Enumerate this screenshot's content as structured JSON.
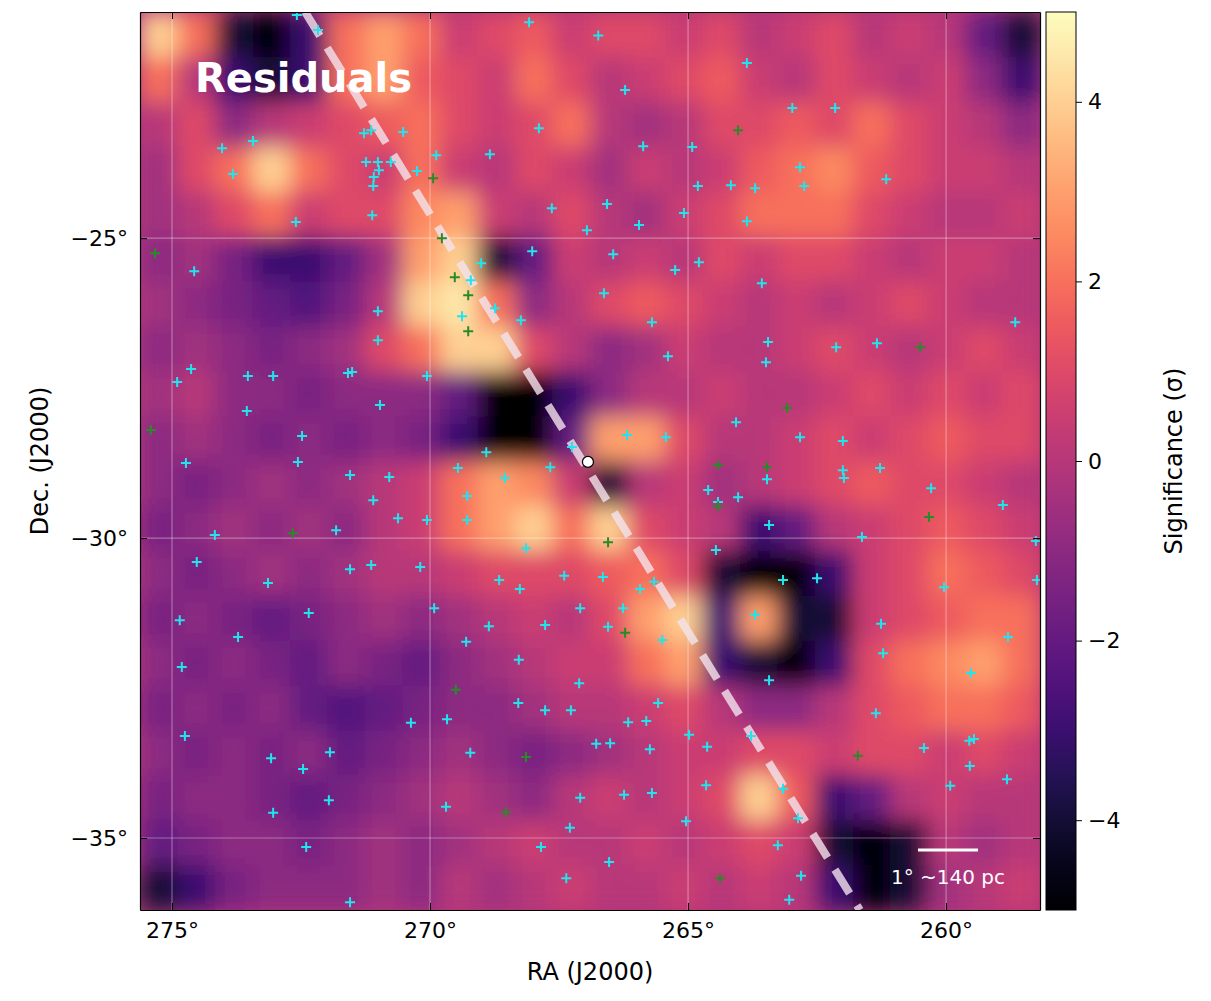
{
  "chart_data": {
    "type": "heatmap",
    "title": "Residuals",
    "x_label": "RA (J2000)",
    "y_label": "Dec. (J2000)",
    "xlim": [
      275.62,
      258.18
    ],
    "ylim": [
      -36.2,
      -21.23
    ],
    "xticks": [
      {
        "value": 275,
        "label": "275°"
      },
      {
        "value": 270,
        "label": "270°"
      },
      {
        "value": 265,
        "label": "265°"
      },
      {
        "value": 260,
        "label": "260°"
      }
    ],
    "yticks": [
      {
        "value": -25,
        "label": "−25°"
      },
      {
        "value": -30,
        "label": "−30°"
      },
      {
        "value": -35,
        "label": "−35°"
      }
    ],
    "grid": true,
    "x_bins": [
      275.62,
      274.89,
      274.17,
      273.44,
      272.71,
      271.99,
      271.26,
      270.53,
      269.81,
      269.08,
      268.35,
      267.63,
      266.9,
      266.17,
      265.45,
      264.72,
      263.99,
      263.27,
      262.54,
      261.81,
      261.09,
      260.36,
      259.63,
      258.91,
      258.18
    ],
    "y_bins": [
      -21.23,
      -21.98,
      -22.73,
      -23.48,
      -24.23,
      -24.97,
      -25.72,
      -26.47,
      -27.22,
      -27.97,
      -28.72,
      -29.46,
      -30.21,
      -30.96,
      -31.71,
      -32.46,
      -33.21,
      -33.95,
      -34.7,
      -35.45,
      -36.2
    ],
    "z": [
      [
        4,
        2,
        -4,
        -5,
        -3,
        2,
        3,
        2,
        0.5,
        1,
        1.5,
        0.5,
        1,
        1,
        0.5,
        1,
        0,
        0.5,
        1,
        0,
        0.5,
        0,
        -2,
        -4
      ],
      [
        2,
        0,
        -3,
        -4,
        -3,
        2,
        3,
        1.5,
        1,
        0.5,
        2,
        1,
        0,
        0.5,
        1,
        1.5,
        0.5,
        0,
        1,
        0.5,
        0,
        0.5,
        -1,
        -3
      ],
      [
        0,
        1,
        -1,
        0,
        0.5,
        1,
        1.5,
        2,
        1,
        0.5,
        1,
        2,
        0,
        -0.5,
        0,
        1,
        1,
        1.5,
        1,
        2,
        1,
        0.5,
        0,
        -1
      ],
      [
        -0.5,
        1,
        2,
        4,
        2,
        1,
        0.5,
        2,
        0.5,
        0,
        1,
        0.5,
        -0.5,
        0.5,
        0,
        0.5,
        1.5,
        2,
        2.5,
        1.5,
        1,
        0.5,
        0.5,
        0
      ],
      [
        -0.5,
        0,
        1,
        2,
        0.5,
        1,
        1,
        2.5,
        3,
        0.5,
        0,
        1,
        0,
        -0.5,
        0.5,
        1,
        2,
        2,
        2,
        1,
        0.5,
        0,
        0,
        0.5
      ],
      [
        -1,
        -0.5,
        -1.5,
        -3,
        -3,
        -2,
        -0.5,
        3,
        4,
        -4,
        -2,
        0.5,
        0,
        0.5,
        0,
        1,
        0.5,
        1,
        1,
        0.5,
        0,
        0.5,
        0.5,
        0
      ],
      [
        -0.5,
        -1,
        -1.5,
        -2,
        -2.5,
        -1.5,
        0,
        4,
        4.5,
        2,
        -1,
        0,
        1,
        1.5,
        1,
        0.5,
        0,
        0.5,
        0,
        0.5,
        1,
        0.5,
        0,
        0
      ],
      [
        -1,
        -0.5,
        -1,
        -1.5,
        -1,
        -0.5,
        1,
        2,
        4,
        4,
        1,
        0,
        -1,
        -0.5,
        0.5,
        0,
        0,
        0.5,
        1,
        0.5,
        0,
        0.5,
        1,
        0.5
      ],
      [
        -0.5,
        0,
        -1,
        -1,
        -1.5,
        -1,
        -1,
        -1,
        -2,
        -5,
        -5,
        -3,
        -1,
        0,
        0,
        0.5,
        0,
        0,
        0.5,
        1,
        0.5,
        1,
        0.5,
        1
      ],
      [
        -1,
        -0.5,
        -1,
        -1.5,
        -1,
        -1.5,
        -1,
        -1.5,
        -3,
        -5,
        -5,
        -2,
        3,
        3,
        1,
        0,
        0,
        0.5,
        1,
        0.5,
        1,
        1.5,
        1,
        1
      ],
      [
        -1,
        -1.5,
        -1,
        -0.5,
        -1,
        -0.5,
        0,
        0.5,
        2,
        3,
        2.5,
        0.5,
        -4,
        0,
        0.5,
        -0.5,
        0,
        0.5,
        1,
        1.5,
        1,
        1,
        0.5,
        0
      ],
      [
        -1.5,
        -1,
        -0.5,
        -1,
        -0.5,
        -1,
        0,
        0.5,
        2,
        3,
        4,
        2,
        4,
        1,
        0.5,
        0,
        -3,
        -2,
        0,
        0.5,
        1,
        1.5,
        1,
        0.5
      ],
      [
        -1,
        -1.5,
        -1,
        -0.5,
        -1,
        -0.5,
        0,
        0,
        0.5,
        1,
        1,
        1,
        1.5,
        2,
        1,
        -4,
        -5,
        -5,
        -3,
        0.5,
        1,
        2,
        1.5,
        1
      ],
      [
        -1.5,
        -1,
        -1.5,
        -2,
        -1.5,
        -1,
        -0.5,
        -1,
        -0.5,
        0,
        0.5,
        0,
        1,
        3,
        4,
        -3,
        3,
        -4,
        -4,
        0.5,
        1,
        1.5,
        2,
        2
      ],
      [
        -1,
        -1.5,
        -1,
        -1.5,
        -2,
        -1,
        -1.5,
        -2,
        -1,
        -0.5,
        0,
        0.5,
        0.5,
        2,
        3,
        -3,
        -4,
        -5,
        -3,
        1,
        2,
        2.5,
        3,
        2
      ],
      [
        -1.5,
        -1,
        -1.5,
        -1,
        -2,
        -2.5,
        -2,
        -1.5,
        -1,
        -1,
        -0.5,
        0,
        0,
        0.5,
        1,
        0,
        -1,
        -1,
        0,
        1,
        1.5,
        2,
        2,
        1.5
      ],
      [
        -1,
        -1.5,
        -1,
        -1.5,
        -1,
        -2,
        -1.5,
        -1,
        -0.5,
        -1,
        -1.5,
        -1,
        -0.5,
        0,
        0.5,
        0.5,
        1,
        1,
        0.5,
        1,
        1,
        0.5,
        1,
        0.5
      ],
      [
        -1.5,
        -1,
        -1,
        -1.5,
        -2,
        -1.5,
        -1,
        -0.5,
        0,
        -0.5,
        -1,
        0,
        0.5,
        0,
        0.5,
        1,
        4,
        1.5,
        -3,
        -2,
        0,
        0.5,
        0,
        0
      ],
      [
        -2,
        -1.5,
        -1,
        -1,
        -1.5,
        -1,
        -0.5,
        -1,
        -0.5,
        0,
        0.5,
        0,
        0,
        0.5,
        0,
        0.5,
        1,
        0.5,
        -4,
        -5,
        -4,
        0,
        -0.5,
        0
      ],
      [
        -4,
        -3,
        -1.5,
        -1,
        -1,
        -1,
        -0.5,
        -1,
        0,
        -0.5,
        0,
        0.5,
        0,
        0,
        0.5,
        0,
        0.5,
        0,
        -3,
        -5,
        -4,
        -0.5,
        0,
        0.5
      ]
    ],
    "colorbar": {
      "label": "Significance (σ)",
      "range": [
        -5,
        5
      ],
      "ticks": [
        {
          "value": -4,
          "label": "−4"
        },
        {
          "value": -2,
          "label": "−2"
        },
        0,
        2,
        4
      ]
    },
    "series": [
      {
        "type": "line",
        "line_style": "dashed",
        "color": "#f3e4ee",
        "x": [
          272.42,
          261.67
        ],
        "y": [
          -21.23,
          -36.2
        ]
      },
      {
        "type": "scatter",
        "marker": "plus",
        "color": "#22e4ee",
        "x": [
          272.58,
          272.17,
          266.74,
          268.08,
          266.22,
          263.86,
          271.14,
          271.28,
          270.52,
          267.89,
          269.88,
          262.98,
          262.15,
          274.03,
          273.43,
          273.82,
          271.24,
          271.01,
          270.76,
          270.99,
          271.09,
          271.1,
          270.25,
          268.84,
          265.87,
          264.92,
          264.17,
          264.81,
          263.7,
          262.83,
          262.75,
          261.16,
          272.6,
          271.12,
          267.64,
          266.57,
          265.08,
          263.86,
          269.01,
          268.02,
          266.96,
          265.95,
          266.45,
          266.63,
          265.25,
          264.79,
          263.57,
          269.21,
          268.74,
          268.24,
          274.57,
          271.01,
          271.01,
          271.59,
          269.38,
          265.7,
          265.39,
          263.45,
          263.49,
          262.13,
          261.34,
          258.66,
          274.9,
          274.63,
          273.53,
          273.04,
          273.55,
          272.48,
          271.51,
          270.97,
          270.06,
          268.91,
          269.46,
          269.28,
          268.55,
          268.14,
          267.67,
          267.25,
          266.18,
          265.43,
          264.07,
          262.83,
          262.0,
          262.0,
          261.28,
          264.61,
          264.42,
          264.03,
          263.43,
          263.47,
          261.98,
          260.29,
          258.9,
          258.26,
          261.63,
          274.73,
          272.56,
          271.55,
          270.79,
          270.62,
          270.06,
          269.28,
          271.1,
          271.82,
          274.17,
          273.14,
          274.52,
          274.85,
          273.72,
          272.35,
          271.55,
          271.14,
          270.19,
          269.92,
          269.3,
          268.66,
          268.26,
          268.86,
          268.28,
          267.77,
          267.09,
          267.4,
          266.65,
          266.55,
          266.26,
          265.93,
          265.66,
          265.5,
          264.46,
          263.7,
          263.16,
          262.5,
          261.26,
          261.22,
          260.04,
          259.52,
          259.46,
          258.8,
          258.24,
          274.75,
          274.81,
          273.08,
          272.46,
          271.94,
          271.96,
          273.04,
          272.4,
          271.55,
          269.67,
          270.37,
          269.22,
          268.29,
          267.77,
          267.27,
          267.11,
          266.78,
          266.51,
          266.16,
          265.81,
          265.58,
          264.98,
          264.63,
          264.65,
          265.7,
          266.24,
          265.04,
          267.09,
          267.29,
          267.85,
          267.36,
          266.53,
          265.74,
          263.78,
          263.43,
          263.16,
          262.87,
          262.81,
          263.26,
          263.04,
          261.36,
          260.43,
          259.55,
          259.54,
          259.92,
          258.82,
          269.69
        ],
        "y": [
          -21.28,
          -21.53,
          -21.62,
          -21.4,
          -22.53,
          -22.08,
          -23.2,
          -23.25,
          -23.23,
          -23.17,
          -23.62,
          -22.83,
          -22.83,
          -23.5,
          -23.38,
          -23.93,
          -23.73,
          -23.73,
          -23.73,
          -23.87,
          -23.98,
          -24.13,
          -23.88,
          -23.6,
          -23.47,
          -23.48,
          -24.12,
          -24.13,
          -24.17,
          -23.82,
          -24.13,
          -24.02,
          -24.73,
          -24.62,
          -24.5,
          -24.43,
          -24.58,
          -24.72,
          -25.42,
          -25.22,
          -24.87,
          -24.78,
          -25.27,
          -25.92,
          -25.53,
          -25.4,
          -25.75,
          -25.7,
          -26.17,
          -26.37,
          -25.55,
          -26.22,
          -26.7,
          -27.25,
          -26.3,
          -26.4,
          -26.97,
          -26.73,
          -27.07,
          -26.82,
          -26.75,
          -26.4,
          -27.4,
          -27.18,
          -27.3,
          -27.3,
          -27.88,
          -28.3,
          -27.23,
          -27.78,
          -27.3,
          -28.57,
          -28.83,
          -29.3,
          -29.0,
          -30.17,
          -28.82,
          -28.48,
          -28.28,
          -28.32,
          -28.07,
          -28.32,
          -28.38,
          -28.87,
          -28.83,
          -29.2,
          -29.4,
          -29.32,
          -29.78,
          -29.02,
          -29.0,
          -29.17,
          -29.45,
          -30.05,
          -29.98,
          -28.75,
          -28.73,
          -28.95,
          -28.98,
          -29.67,
          -29.7,
          -29.7,
          -29.37,
          -29.87,
          -29.95,
          -30.75,
          -30.4,
          -31.37,
          -31.65,
          -31.25,
          -30.52,
          -30.45,
          -30.48,
          -31.17,
          -31.73,
          -30.7,
          -30.85,
          -31.47,
          -32.03,
          -31.45,
          -31.17,
          -30.63,
          -30.65,
          -31.48,
          -31.17,
          -30.85,
          -30.73,
          -31.7,
          -30.2,
          -31.28,
          -30.7,
          -30.67,
          -31.43,
          -31.92,
          -30.82,
          -32.25,
          -33.35,
          -31.65,
          -30.7,
          -33.3,
          -32.15,
          -33.67,
          -33.85,
          -33.57,
          -34.37,
          -34.58,
          -35.15,
          -36.07,
          -33.02,
          -33.08,
          -33.58,
          -32.75,
          -32.87,
          -32.87,
          -32.42,
          -33.43,
          -33.42,
          -33.07,
          -33.05,
          -32.75,
          -33.28,
          -33.48,
          -34.12,
          -34.25,
          -34.28,
          -34.72,
          -34.33,
          -34.83,
          -35.15,
          -35.67,
          -35.4,
          -33.52,
          -33.3,
          -32.37,
          -34.18,
          -34.67,
          -35.63,
          -35.12,
          -36.03,
          -32.92,
          -33.5,
          -33.38,
          -33.8,
          -34.13,
          -34.02,
          -34.48
        ]
      },
      {
        "type": "scatter",
        "marker": "plus",
        "color": "#2a8a2a",
        "x": [
          264.03,
          269.94,
          269.77,
          269.52,
          269.26,
          269.26,
          275.33,
          260.5,
          263.08,
          275.41,
          264.42,
          264.42,
          263.47,
          260.33,
          266.55,
          266.22,
          269.5,
          268.14,
          268.53,
          272.66,
          261.71,
          264.38
        ],
        "y": [
          -23.2,
          -24.0,
          -25.0,
          -25.65,
          -25.95,
          -26.55,
          -25.25,
          -26.82,
          -27.83,
          -28.2,
          -28.78,
          -29.47,
          -28.82,
          -29.65,
          -30.07,
          -31.58,
          -32.53,
          -33.65,
          -34.57,
          -29.92,
          -33.63,
          -35.67
        ]
      },
      {
        "type": "scatter",
        "marker": "circle",
        "color": "#ffffff",
        "x": [
          266.94
        ],
        "y": [
          -28.73
        ]
      }
    ],
    "scale_bar": {
      "label": "1° ~140 pc",
      "length": 1
    }
  }
}
